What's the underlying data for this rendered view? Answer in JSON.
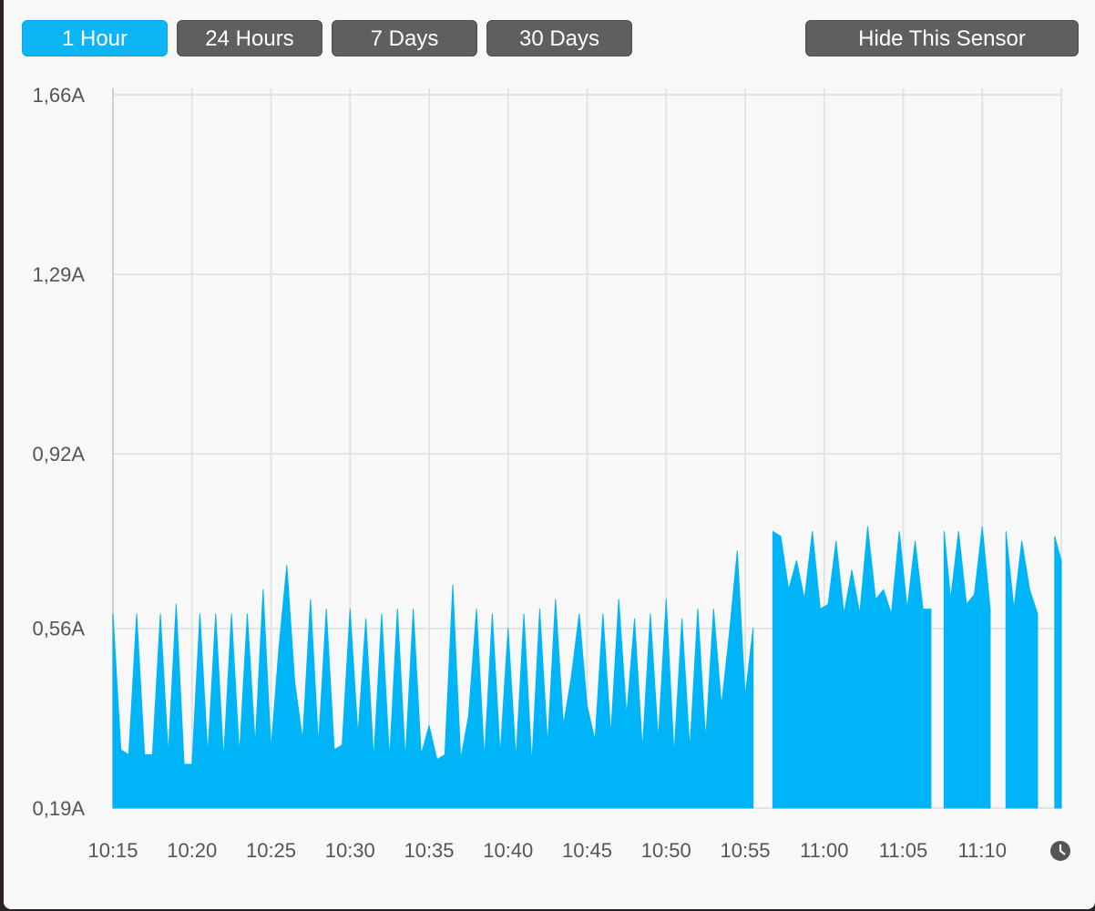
{
  "buttons": [
    "1 Hour",
    "24 Hours",
    "7 Days",
    "30 Days"
  ],
  "active_button": 0,
  "action_button": "Hide This Sensor",
  "chart_data": {
    "type": "area",
    "color": "#00b5f7",
    "grid": true,
    "x": [
      "10:15:00",
      "10:15:30",
      "10:16:00",
      "10:16:30",
      "10:17:00",
      "10:17:30",
      "10:18:00",
      "10:18:30",
      "10:19:00",
      "10:19:30",
      "10:20:00",
      "10:20:30",
      "10:21:00",
      "10:21:30",
      "10:22:00",
      "10:22:30",
      "10:23:00",
      "10:23:30",
      "10:24:00",
      "10:24:30",
      "10:25:00",
      "10:25:30",
      "10:26:00",
      "10:26:30",
      "10:27:00",
      "10:27:30",
      "10:28:00",
      "10:28:30",
      "10:29:00",
      "10:29:30",
      "10:30:00",
      "10:30:30",
      "10:31:00",
      "10:31:30",
      "10:32:00",
      "10:32:30",
      "10:33:00",
      "10:33:30",
      "10:34:00",
      "10:34:30",
      "10:35:00",
      "10:35:30",
      "10:36:00",
      "10:36:30",
      "10:37:00",
      "10:37:30",
      "10:38:00",
      "10:38:30",
      "10:39:00",
      "10:39:30",
      "10:40:00",
      "10:40:30",
      "10:41:00",
      "10:41:30",
      "10:42:00",
      "10:42:30",
      "10:43:00",
      "10:43:30",
      "10:44:00",
      "10:44:30",
      "10:45:00",
      "10:45:30",
      "10:46:00",
      "10:46:30",
      "10:47:00",
      "10:47:30",
      "10:48:00",
      "10:48:30",
      "10:49:00",
      "10:49:30",
      "10:50:00",
      "10:50:30",
      "10:51:00",
      "10:51:30",
      "10:52:00",
      "10:52:30",
      "10:53:00",
      "10:53:30",
      "10:54:00",
      "10:54:30",
      "10:55:00",
      "10:55:30",
      "10:56:00",
      "10:56:45",
      "10:57:15",
      "10:57:45",
      "10:58:15",
      "10:58:45",
      "10:59:15",
      "10:59:45",
      "11:00:15",
      "11:00:45",
      "11:01:15",
      "11:01:45",
      "11:02:15",
      "11:02:45",
      "11:03:15",
      "11:03:45",
      "11:04:15",
      "11:04:45",
      "11:05:15",
      "11:05:45",
      "11:06:15",
      "11:06:45",
      "11:07:00",
      "11:07:35",
      "11:08:00",
      "11:08:30",
      "11:09:00",
      "11:09:30",
      "11:10:00",
      "11:10:30",
      "11:11:00",
      "11:11:30",
      "11:12:00",
      "11:12:30",
      "11:13:00",
      "11:13:30",
      "11:14:00",
      "11:14:35",
      "11:15:00"
    ],
    "values": [
      0.59,
      0.31,
      0.3,
      0.59,
      0.3,
      0.3,
      0.59,
      0.3,
      0.61,
      0.28,
      0.28,
      0.59,
      0.3,
      0.59,
      0.29,
      0.59,
      0.3,
      0.59,
      0.32,
      0.64,
      0.31,
      0.52,
      0.69,
      0.45,
      0.33,
      0.62,
      0.32,
      0.6,
      0.31,
      0.32,
      0.6,
      0.34,
      0.58,
      0.29,
      0.59,
      0.29,
      0.6,
      0.29,
      0.6,
      0.3,
      0.36,
      0.29,
      0.3,
      0.65,
      0.29,
      0.38,
      0.6,
      0.29,
      0.59,
      0.3,
      0.56,
      0.29,
      0.59,
      0.28,
      0.6,
      0.32,
      0.62,
      0.36,
      0.46,
      0.59,
      0.4,
      0.33,
      0.59,
      0.34,
      0.62,
      0.38,
      0.58,
      0.31,
      0.59,
      0.33,
      0.62,
      0.3,
      0.58,
      0.31,
      0.6,
      0.33,
      0.6,
      0.4,
      0.55,
      0.72,
      0.42,
      0.56,
      null,
      0.76,
      0.75,
      0.64,
      0.7,
      0.62,
      0.76,
      0.6,
      0.61,
      0.74,
      0.59,
      0.68,
      0.59,
      0.77,
      0.62,
      0.64,
      0.59,
      0.76,
      0.6,
      0.74,
      0.6,
      0.6,
      null,
      0.76,
      0.62,
      0.76,
      0.61,
      0.63,
      0.77,
      0.6,
      null,
      0.76,
      0.6,
      0.74,
      0.64,
      0.59,
      null,
      0.75,
      0.7
    ],
    "xlim": [
      "10:15",
      "11:15"
    ],
    "xticks": [
      "10:15",
      "10:20",
      "10:25",
      "10:30",
      "10:35",
      "10:40",
      "10:45",
      "10:50",
      "10:55",
      "11:00",
      "11:05",
      "11:10"
    ],
    "ylim": [
      0.19,
      1.66
    ],
    "yticks": [
      {
        "value": 0.19,
        "label": "0,19A"
      },
      {
        "value": 0.56,
        "label": "0,56A"
      },
      {
        "value": 0.92,
        "label": "0,92A"
      },
      {
        "value": 1.29,
        "label": "1,29A"
      },
      {
        "value": 1.66,
        "label": "1,66A"
      }
    ]
  }
}
